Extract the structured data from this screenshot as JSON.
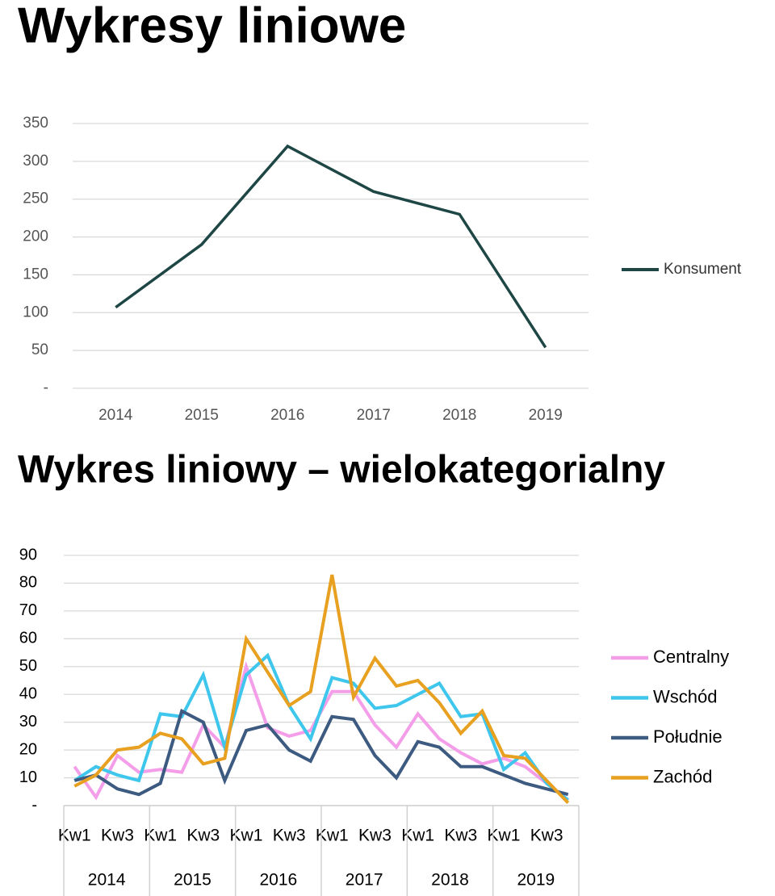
{
  "chart_data": [
    {
      "type": "line",
      "title": "Wykresy liniowe",
      "categories": [
        "2014",
        "2015",
        "2016",
        "2017",
        "2018",
        "2019"
      ],
      "series": [
        {
          "name": "Konsument",
          "color": "#1e4645",
          "values": [
            107,
            190,
            320,
            260,
            230,
            54
          ]
        }
      ],
      "ylim": [
        0,
        350
      ],
      "yticks": [
        {
          "value": 0,
          "label": "-"
        },
        50,
        100,
        150,
        200,
        250,
        300,
        350
      ],
      "grid": true,
      "legend": "right"
    },
    {
      "type": "line",
      "title": "Wykres liniowy – wielokategorialny",
      "categories": [
        "Kw1",
        null,
        "Kw3",
        null,
        "Kw1",
        null,
        "Kw3",
        null,
        "Kw1",
        null,
        "Kw3",
        null,
        "Kw1",
        null,
        "Kw3",
        null,
        "Kw1",
        null,
        "Kw3",
        null,
        "Kw1",
        null,
        "Kw3",
        null
      ],
      "groups": [
        "2014",
        "2015",
        "2016",
        "2017",
        "2018",
        "2019"
      ],
      "series": [
        {
          "name": "Centralny",
          "color": "#f49ee9",
          "values": [
            14,
            3,
            18,
            12,
            13,
            12,
            29,
            21,
            50,
            28,
            25,
            27,
            41,
            41,
            29,
            21,
            33,
            24,
            19,
            15,
            17,
            14,
            8,
            2
          ]
        },
        {
          "name": "Wschód",
          "color": "#3ec6ec",
          "values": [
            9,
            14,
            11,
            9,
            33,
            32,
            47,
            21,
            47,
            54,
            36,
            24,
            46,
            44,
            35,
            36,
            40,
            44,
            32,
            33,
            13,
            19,
            8,
            2
          ]
        },
        {
          "name": "Południe",
          "color": "#3d5a80",
          "values": [
            9,
            11,
            6,
            4,
            8,
            34,
            30,
            9,
            27,
            29,
            20,
            16,
            32,
            31,
            18,
            10,
            23,
            21,
            14,
            14,
            11,
            8,
            6,
            4
          ]
        },
        {
          "name": "Zachód",
          "color": "#e8a020",
          "values": [
            7,
            11,
            20,
            21,
            26,
            24,
            15,
            17,
            60,
            48,
            36,
            41,
            83,
            39,
            53,
            43,
            45,
            37,
            26,
            34,
            18,
            17,
            9,
            1
          ]
        }
      ],
      "ylim": [
        0,
        90
      ],
      "yticks": [
        {
          "value": 0,
          "label": "-"
        },
        10,
        20,
        30,
        40,
        50,
        60,
        70,
        80,
        90
      ],
      "grid": true,
      "legend": "right"
    }
  ]
}
